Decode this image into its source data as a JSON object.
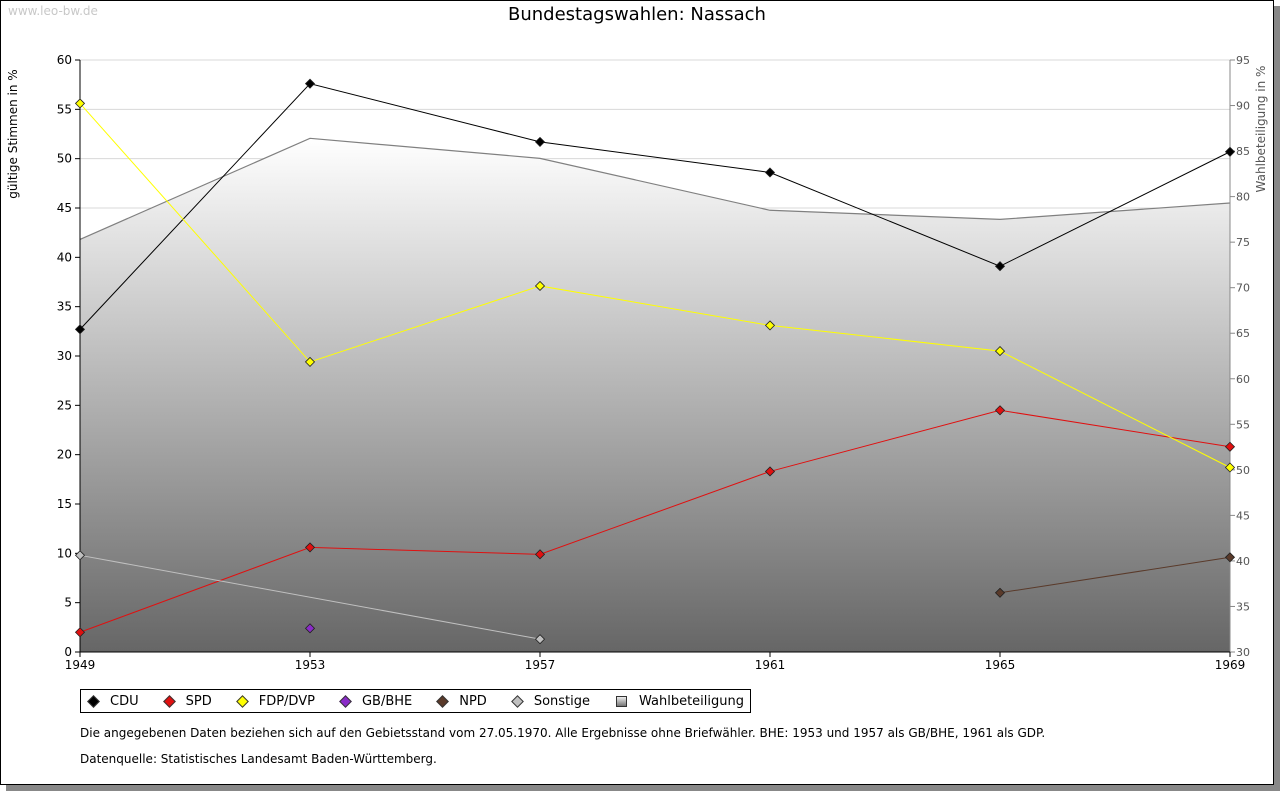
{
  "watermark": "www.leo-bw.de",
  "notes": {
    "gebietsstand": "Die angegebenen Daten beziehen sich auf den Gebietsstand vom 27.05.1970. Alle Ergebnisse ohne Briefwähler. BHE: 1953 und 1957 als GB/BHE, 1961 als GDP.",
    "quelle": "Datenquelle: Statistisches Landesamt Baden-Württemberg."
  },
  "chart_data": {
    "type": "line",
    "title": "Bundestagswahlen: Nassach",
    "ylabel": "gültige Stimmen in %",
    "y2label": "Wahlbeteiligung in %",
    "x": [
      1949,
      1953,
      1957,
      1961,
      1965,
      1969
    ],
    "xlim": [
      1949,
      1969
    ],
    "ylim": [
      0,
      60
    ],
    "y2lim": [
      30,
      95
    ],
    "yticks": [
      0,
      5,
      10,
      15,
      20,
      25,
      30,
      35,
      40,
      45,
      50,
      55,
      60
    ],
    "y2ticks": [
      30,
      35,
      40,
      45,
      50,
      55,
      60,
      65,
      70,
      75,
      80,
      85,
      90,
      95
    ],
    "grid": true,
    "legend_position": "bottom",
    "series": [
      {
        "name": "CDU",
        "color": "#000000",
        "values": [
          32.7,
          57.6,
          51.7,
          48.6,
          39.1,
          50.7
        ]
      },
      {
        "name": "SPD",
        "color": "#e01010",
        "values": [
          2.0,
          10.6,
          9.9,
          18.3,
          24.5,
          20.8
        ]
      },
      {
        "name": "FDP/DVP",
        "color": "#ffff00",
        "values": [
          55.6,
          29.4,
          37.1,
          33.1,
          30.5,
          18.7
        ]
      },
      {
        "name": "GB/BHE",
        "color": "#8a2bc8",
        "values": [
          null,
          2.4,
          null,
          null,
          null,
          null
        ]
      },
      {
        "name": "NPD",
        "color": "#5a3a2a",
        "values": [
          null,
          null,
          null,
          null,
          6.0,
          9.6
        ]
      },
      {
        "name": "Sonstige",
        "color": "#c0c0c0",
        "values": [
          9.8,
          null,
          1.3,
          null,
          null,
          null
        ]
      },
      {
        "name": "Wahlbeteiligung",
        "color": "#808080",
        "axis": "right",
        "type": "area",
        "values": [
          75.3,
          86.4,
          84.2,
          78.5,
          77.5,
          79.3
        ]
      }
    ]
  }
}
